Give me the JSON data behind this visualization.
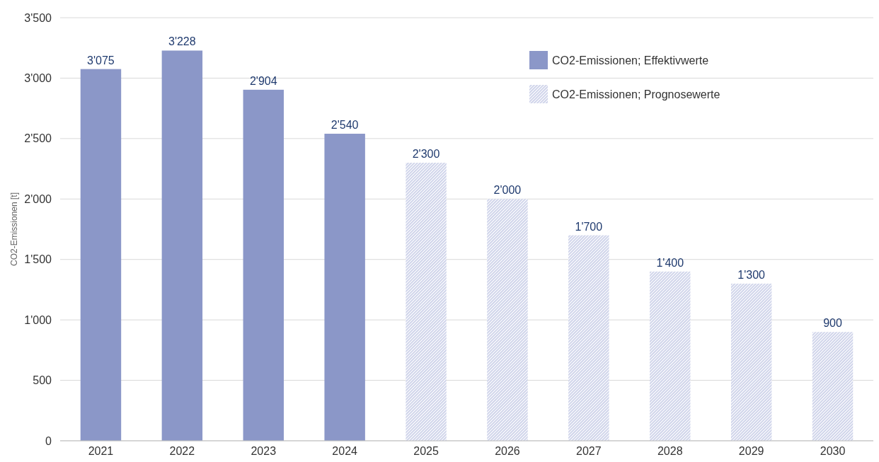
{
  "chart_data": {
    "type": "bar",
    "ylabel": "CO2-Emissionen [t]",
    "categories": [
      "2021",
      "2022",
      "2023",
      "2024",
      "2025",
      "2026",
      "2027",
      "2028",
      "2029",
      "2030"
    ],
    "series": [
      {
        "name": "CO2-Emissionen; Effektivwerte",
        "color": "#8b97c8",
        "values": [
          3075,
          3228,
          2904,
          2540,
          null,
          null,
          null,
          null,
          null,
          null
        ],
        "value_labels": [
          "3'075",
          "3'228",
          "2'904",
          "2'540",
          null,
          null,
          null,
          null,
          null,
          null
        ]
      },
      {
        "name": "CO2-Emissionen; Prognosewerte",
        "color": "#c5cbe6",
        "values": [
          null,
          null,
          null,
          null,
          2300,
          2000,
          1700,
          1400,
          1300,
          900
        ],
        "value_labels": [
          null,
          null,
          null,
          null,
          "2'300",
          "2'000",
          "1'700",
          "1'400",
          "1'300",
          "900"
        ]
      }
    ],
    "ylim": [
      0,
      3500
    ],
    "yticks": [
      0,
      {
        "value": 500,
        "label": "500"
      },
      {
        "value": 1000,
        "label": "1'000"
      },
      {
        "value": 1500,
        "label": "1'500"
      },
      {
        "value": 2000,
        "label": "2'000"
      },
      {
        "value": 2500,
        "label": "2'500"
      },
      {
        "value": 3000,
        "label": "3'000"
      },
      {
        "value": 3500,
        "label": "3'500"
      }
    ],
    "grid": "y",
    "legend": "top right"
  }
}
